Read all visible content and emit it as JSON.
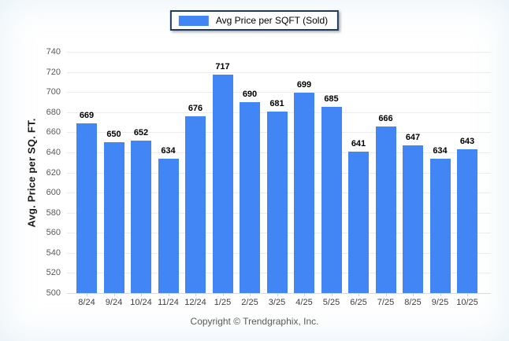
{
  "footer": {
    "copyright": "Copyright © Trendgraphix, Inc."
  },
  "colors": {
    "bar": "#4285f4",
    "legend_border": "#1e3a5e",
    "gridline": "#ececec",
    "axis_line": "#d9d9d9"
  },
  "chart_data": {
    "type": "bar",
    "title": "",
    "legend": "Avg Price per SQFT (Sold)",
    "legend_position": "top-center",
    "xlabel": "",
    "ylabel": "Avg. Price per SQ. FT.",
    "ylim": [
      500,
      740
    ],
    "yticks": [
      740,
      720,
      700,
      680,
      660,
      640,
      620,
      600,
      580,
      560,
      540,
      520,
      500
    ],
    "grid": true,
    "categories": [
      "8/24",
      "9/24",
      "10/24",
      "11/24",
      "12/24",
      "1/25",
      "2/25",
      "3/25",
      "4/25",
      "5/25",
      "6/25",
      "7/25",
      "8/25",
      "9/25",
      "10/25"
    ],
    "values": [
      669,
      650,
      652,
      634,
      676,
      717,
      690,
      681,
      699,
      685,
      641,
      666,
      647,
      634,
      643
    ]
  }
}
